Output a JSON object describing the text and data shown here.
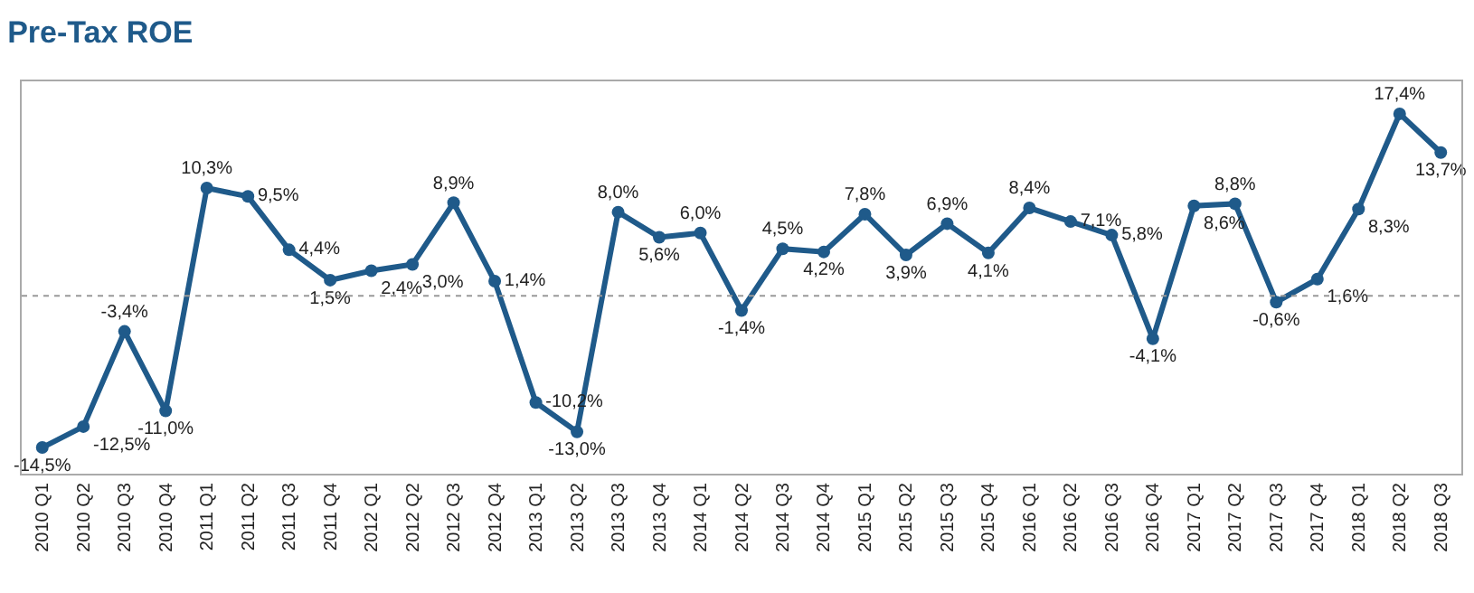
{
  "chart_data": {
    "type": "line",
    "title": "Pre-Tax ROE",
    "categories": [
      "2010 Q1",
      "2010 Q2",
      "2010 Q3",
      "2010 Q4",
      "2011 Q1",
      "2011 Q2",
      "2011 Q3",
      "2011 Q4",
      "2012 Q1",
      "2012 Q2",
      "2012 Q3",
      "2012 Q4",
      "2013 Q1",
      "2013 Q2",
      "2013 Q3",
      "2013 Q4",
      "2014 Q1",
      "2014 Q2",
      "2014 Q3",
      "2014 Q4",
      "2015 Q1",
      "2015 Q2",
      "2015 Q3",
      "2015 Q4",
      "2016 Q1",
      "2016 Q2",
      "2016 Q3",
      "2016 Q4",
      "2017 Q1",
      "2017 Q2",
      "2017 Q3",
      "2017 Q4",
      "2018 Q1",
      "2018 Q2",
      "2018 Q3"
    ],
    "series": [
      {
        "color": "#1f5a8a",
        "values": [
          -14.5,
          -12.5,
          -3.4,
          -11.0,
          10.3,
          9.5,
          4.4,
          1.5,
          2.4,
          3.0,
          8.9,
          1.4,
          -10.2,
          -13.0,
          8.0,
          5.6,
          6.0,
          -1.4,
          4.5,
          4.2,
          7.8,
          3.9,
          6.9,
          4.1,
          8.4,
          7.1,
          5.8,
          -4.1,
          8.6,
          8.8,
          -0.6,
          1.6,
          8.3,
          17.4,
          13.7
        ],
        "value_labels": [
          "-14,5%",
          "-12,5%",
          "-3,4%",
          "-11,0%",
          "10,3%",
          "9,5%",
          "4,4%",
          "1,5%",
          "2,4%",
          "3,0%",
          "8,9%",
          "1,4%",
          "-10,2%",
          "-13,0%",
          "8,0%",
          "5,6%",
          "6,0%",
          "-1,4%",
          "4,5%",
          "4,2%",
          "7,8%",
          "3,9%",
          "6,9%",
          "4,1%",
          "8,4%",
          "7,1%",
          "5,8%",
          "-4,1%",
          "8,6%",
          "8,8%",
          "-0,6%",
          "1,6%",
          "8,3%",
          "17,4%",
          "13,7%"
        ]
      }
    ],
    "ylim": [
      -17.0,
      20.5
    ],
    "tick_labels": "x",
    "legend": false,
    "marker": "circle",
    "line_style": "solid",
    "ref_lines": [
      {
        "axis": "y",
        "value": 0,
        "color": "#999999",
        "line_style": "dotted"
      }
    ]
  }
}
